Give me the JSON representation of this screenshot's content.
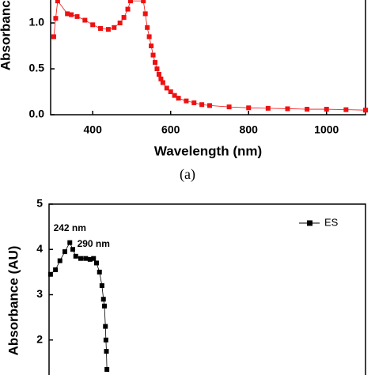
{
  "chart_data": [
    {
      "type": "scatter-line",
      "y_label": "Absorbance",
      "x_label": "Wavelength (nm)",
      "caption": "(a)",
      "color": "#ee1111",
      "xlim": [
        292,
        1100
      ],
      "ylim": [
        0,
        1.25
      ],
      "xticks": [
        400,
        600,
        800,
        1000
      ],
      "yticks": [
        {
          "value": 0,
          "label": "0.0"
        },
        0.5,
        {
          "value": 1,
          "label": "1.0"
        }
      ],
      "series": [
        {
          "name": null,
          "color": "#ee1111",
          "x": [
            300,
            305,
            310,
            335,
            345,
            360,
            380,
            400,
            420,
            440,
            455,
            470,
            480,
            490,
            497,
            530,
            535,
            540,
            545,
            550,
            555,
            560,
            565,
            570,
            575,
            580,
            590,
            600,
            610,
            620,
            640,
            660,
            680,
            700,
            750,
            800,
            850,
            900,
            950,
            1000,
            1050,
            1100
          ],
          "values": [
            0.85,
            1.05,
            1.24,
            1.1,
            1.09,
            1.07,
            1.03,
            0.98,
            0.94,
            0.93,
            0.95,
            1.0,
            1.06,
            1.15,
            1.24,
            1.24,
            1.1,
            0.95,
            0.85,
            0.75,
            0.65,
            0.57,
            0.5,
            0.44,
            0.39,
            0.35,
            0.29,
            0.25,
            0.21,
            0.18,
            0.15,
            0.13,
            0.11,
            0.1,
            0.085,
            0.075,
            0.07,
            0.065,
            0.06,
            0.06,
            0.055,
            0.05
          ]
        }
      ]
    },
    {
      "type": "scatter-line",
      "y_label": "Absorbance (AU)",
      "legend": "top-right",
      "xlim": [
        200,
        840
      ],
      "ylim": [
        1,
        5
      ],
      "yticks": [
        2,
        3,
        4,
        5
      ],
      "annotations": [
        {
          "text": "242 nm",
          "x": 242,
          "y": 4.15
        },
        {
          "text": "290 nm",
          "x": 290,
          "y": 3.8
        }
      ],
      "series": [
        {
          "name": "ES",
          "color": "#000000",
          "x": [
            203,
            213,
            222,
            232,
            242,
            248,
            254,
            264,
            274,
            283,
            290,
            296,
            302,
            307,
            310,
            312,
            314,
            315,
            316,
            317
          ],
          "values": [
            3.45,
            3.55,
            3.75,
            3.95,
            4.15,
            4.0,
            3.85,
            3.8,
            3.8,
            3.78,
            3.8,
            3.7,
            3.5,
            3.2,
            2.9,
            2.75,
            2.3,
            2.0,
            1.75,
            1.35
          ]
        }
      ]
    }
  ]
}
